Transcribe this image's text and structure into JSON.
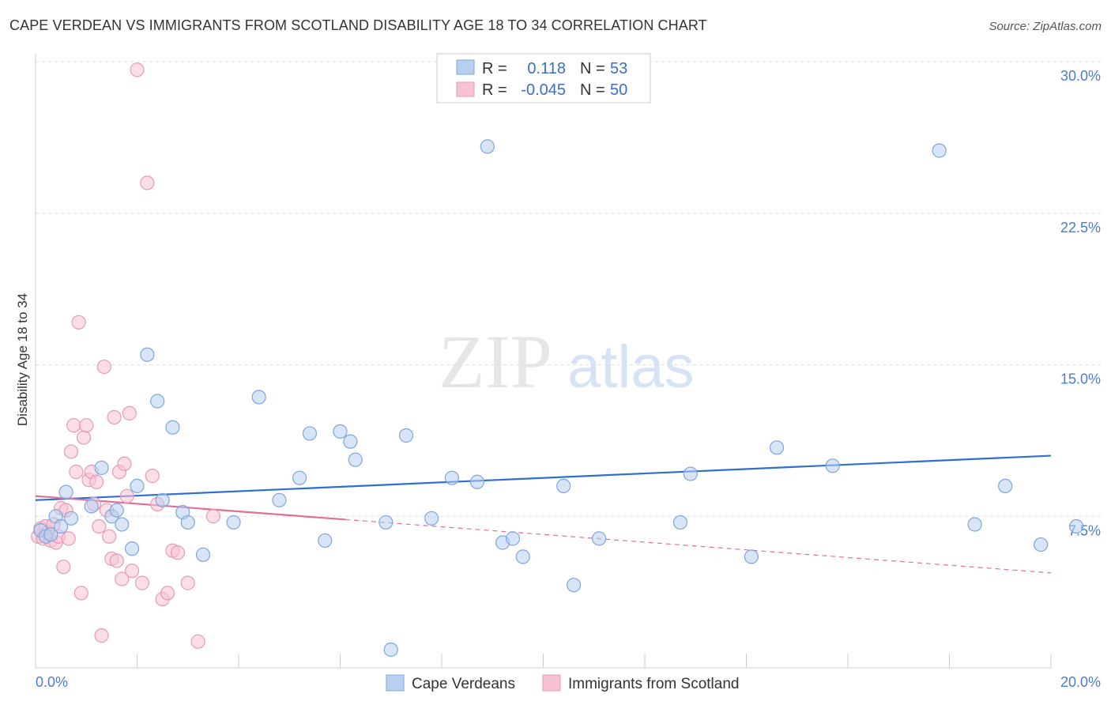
{
  "title": "CAPE VERDEAN VS IMMIGRANTS FROM SCOTLAND DISABILITY AGE 18 TO 34 CORRELATION CHART",
  "source": "Source: ZipAtlas.com",
  "watermark": {
    "zip": "ZIP",
    "atlas": "atlas"
  },
  "colors": {
    "blue_fill": "#b8d0f0",
    "blue_stroke": "#7ea6dc",
    "blue_line": "#2f6fcf",
    "pink_fill": "#f7c3d3",
    "pink_stroke": "#e89ab3",
    "pink_line": "#e0709a",
    "tick_text": "#4a7cc9",
    "grid": "#dddddd"
  },
  "legend": {
    "r_label": "R =",
    "n_label": "N =",
    "rows": [
      {
        "series": "blue",
        "r": "0.118",
        "n": "53"
      },
      {
        "series": "pink",
        "r": "-0.045",
        "n": "50"
      }
    ]
  },
  "chart_data": {
    "type": "scatter",
    "title": "CAPE VERDEAN VS IMMIGRANTS FROM SCOTLAND DISABILITY AGE 18 TO 34 CORRELATION CHART",
    "xlabel": "",
    "ylabel": "Disability Age 18 to 34",
    "xlim": [
      0,
      20
    ],
    "ylim": [
      0,
      30
    ],
    "x_tick_labels": [
      "0.0%",
      "20.0%"
    ],
    "y_ticks": [
      7.5,
      15.0,
      22.5,
      30.0
    ],
    "y_tick_labels": [
      "7.5%",
      "15.0%",
      "22.5%",
      "30.0%"
    ],
    "grid": true,
    "legend_position": "top-center",
    "series": [
      {
        "name": "Cape Verdeans",
        "color": "#b8d0f0",
        "trend": {
          "x": [
            0,
            20
          ],
          "y": [
            8.3,
            10.5
          ],
          "solid_to": 20
        },
        "points": [
          [
            0.1,
            6.8
          ],
          [
            0.2,
            6.5
          ],
          [
            0.3,
            6.6
          ],
          [
            0.4,
            7.5
          ],
          [
            0.5,
            7.0
          ],
          [
            0.6,
            8.7
          ],
          [
            0.7,
            7.4
          ],
          [
            1.1,
            8.0
          ],
          [
            1.3,
            9.9
          ],
          [
            1.5,
            7.5
          ],
          [
            1.6,
            7.8
          ],
          [
            1.7,
            7.1
          ],
          [
            1.9,
            5.9
          ],
          [
            2.0,
            9.0
          ],
          [
            2.2,
            15.5
          ],
          [
            2.4,
            13.2
          ],
          [
            2.5,
            8.3
          ],
          [
            2.7,
            11.9
          ],
          [
            2.9,
            7.7
          ],
          [
            3.0,
            7.2
          ],
          [
            3.3,
            5.6
          ],
          [
            3.9,
            7.2
          ],
          [
            4.4,
            13.4
          ],
          [
            4.8,
            8.3
          ],
          [
            5.2,
            9.4
          ],
          [
            5.4,
            11.6
          ],
          [
            5.7,
            6.3
          ],
          [
            6.0,
            11.7
          ],
          [
            6.2,
            11.2
          ],
          [
            6.3,
            10.3
          ],
          [
            6.9,
            7.2
          ],
          [
            7.0,
            0.9
          ],
          [
            7.3,
            11.5
          ],
          [
            7.8,
            7.4
          ],
          [
            8.2,
            9.4
          ],
          [
            8.7,
            9.2
          ],
          [
            8.9,
            25.8
          ],
          [
            9.2,
            6.2
          ],
          [
            9.4,
            6.4
          ],
          [
            9.6,
            5.5
          ],
          [
            10.4,
            9.0
          ],
          [
            10.6,
            4.1
          ],
          [
            11.1,
            6.4
          ],
          [
            12.7,
            7.2
          ],
          [
            12.9,
            9.6
          ],
          [
            14.1,
            5.5
          ],
          [
            14.6,
            10.9
          ],
          [
            15.7,
            10.0
          ],
          [
            17.8,
            25.6
          ],
          [
            18.5,
            7.1
          ],
          [
            19.1,
            9.0
          ],
          [
            19.8,
            6.1
          ],
          [
            20.5,
            7.0
          ]
        ]
      },
      {
        "name": "Immigrants from Scotland",
        "color": "#f7c3d3",
        "trend": {
          "x": [
            0,
            20
          ],
          "y": [
            8.5,
            4.7
          ],
          "solid_to": 6.1
        },
        "points": [
          [
            0.05,
            6.5
          ],
          [
            0.1,
            6.9
          ],
          [
            0.15,
            6.4
          ],
          [
            0.2,
            7.0
          ],
          [
            0.25,
            6.7
          ],
          [
            0.3,
            6.3
          ],
          [
            0.35,
            7.1
          ],
          [
            0.4,
            6.2
          ],
          [
            0.45,
            6.5
          ],
          [
            0.5,
            7.9
          ],
          [
            0.55,
            5.0
          ],
          [
            0.6,
            7.8
          ],
          [
            0.65,
            6.4
          ],
          [
            0.7,
            10.7
          ],
          [
            0.75,
            12.0
          ],
          [
            0.8,
            9.7
          ],
          [
            0.85,
            17.1
          ],
          [
            0.9,
            3.7
          ],
          [
            0.95,
            11.4
          ],
          [
            1.0,
            12.0
          ],
          [
            1.05,
            9.3
          ],
          [
            1.1,
            9.7
          ],
          [
            1.15,
            8.1
          ],
          [
            1.2,
            9.2
          ],
          [
            1.25,
            7.0
          ],
          [
            1.3,
            1.6
          ],
          [
            1.35,
            14.9
          ],
          [
            1.4,
            7.8
          ],
          [
            1.45,
            6.5
          ],
          [
            1.5,
            5.4
          ],
          [
            1.55,
            12.4
          ],
          [
            1.6,
            5.3
          ],
          [
            1.65,
            9.7
          ],
          [
            1.7,
            4.4
          ],
          [
            1.75,
            10.1
          ],
          [
            1.8,
            8.5
          ],
          [
            1.85,
            12.6
          ],
          [
            1.9,
            4.8
          ],
          [
            2.0,
            29.6
          ],
          [
            2.1,
            4.2
          ],
          [
            2.2,
            24.0
          ],
          [
            2.3,
            9.5
          ],
          [
            2.4,
            8.1
          ],
          [
            2.5,
            3.4
          ],
          [
            2.6,
            3.7
          ],
          [
            2.7,
            5.8
          ],
          [
            2.8,
            5.7
          ],
          [
            3.0,
            4.2
          ],
          [
            3.2,
            1.3
          ],
          [
            3.5,
            7.5
          ]
        ]
      }
    ]
  }
}
